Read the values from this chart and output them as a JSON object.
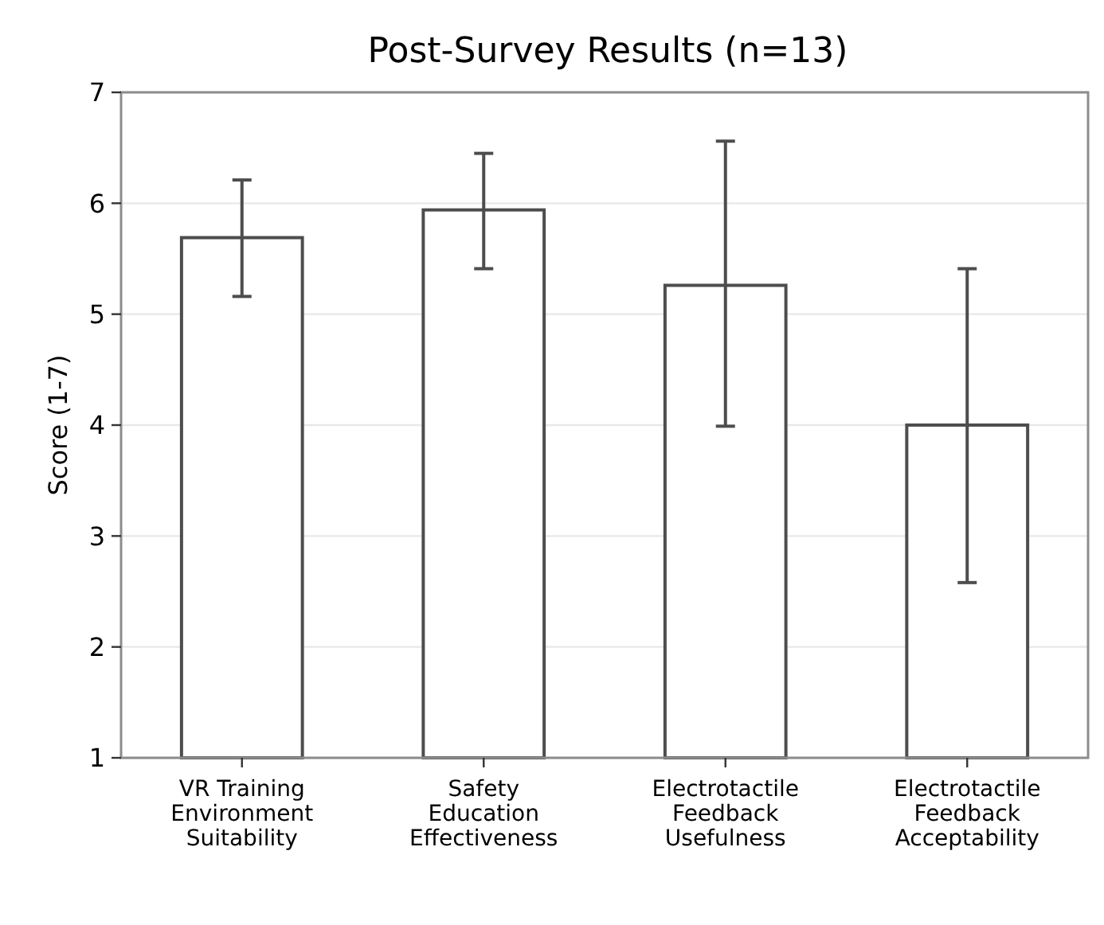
{
  "chart_data": {
    "type": "bar",
    "title": "Post-Survey Results (n=13)",
    "ylabel": "Score (1-7)",
    "categories": [
      "VR Training\nEnvironment\nSuitability",
      "Safety\nEducation\nEffectiveness",
      "Electrotactile\nFeedback\nUsefulness",
      "Electrotactile\nFeedback\nAcceptability"
    ],
    "values": [
      5.69,
      5.94,
      5.26,
      4.0
    ],
    "errors": [
      [
        5.16,
        6.21
      ],
      [
        5.41,
        6.45
      ],
      [
        3.99,
        6.56
      ],
      [
        2.58,
        5.41
      ]
    ],
    "color": "#ffffff",
    "ylim": [
      1,
      7
    ],
    "yticks": [
      1,
      2,
      3,
      4,
      5,
      6,
      7
    ],
    "grid": "y"
  }
}
